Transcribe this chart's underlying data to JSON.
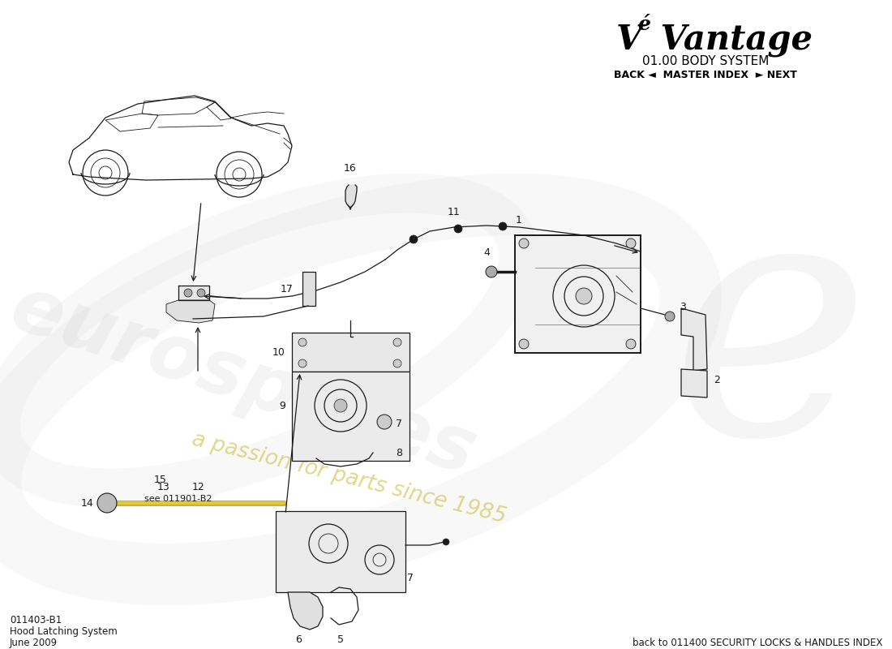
{
  "title_brand": "Vé Vantage",
  "title_system": "01.00 BODY SYSTEM",
  "title_nav": "BACK ◄  MASTER INDEX  ► NEXT",
  "bottom_left_code": "011403-B1",
  "bottom_left_name": "Hood Latching System",
  "bottom_left_date": "June 2009",
  "bottom_right_text": "back to 011400 SECURITY LOCKS & HANDLES INDEX",
  "bg_color": "#ffffff",
  "lc": "#1a1a1a",
  "watermark_text": "eurospares",
  "watermark_subtext": "a passion for parts since 1985",
  "watermark_color": "#cccccc",
  "watermark_sub_color": "#d4c84a"
}
